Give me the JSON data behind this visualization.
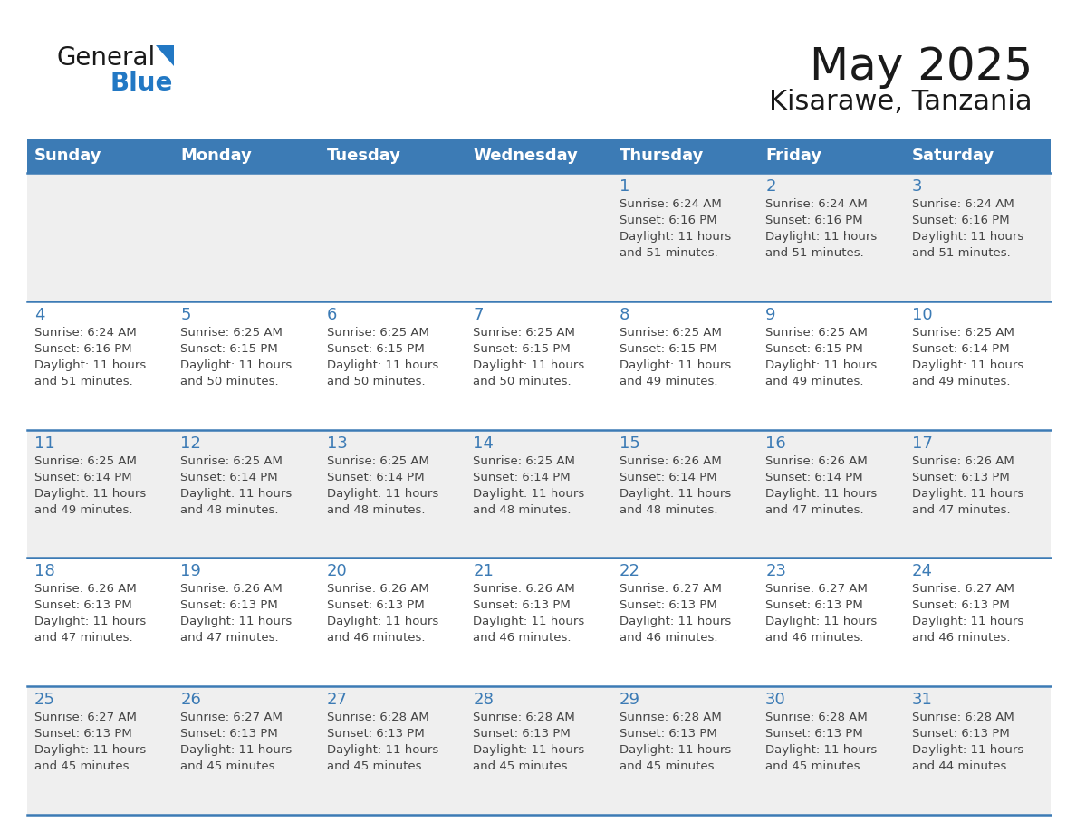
{
  "title": "May 2025",
  "subtitle": "Kisarawe, Tanzania",
  "days_of_week": [
    "Sunday",
    "Monday",
    "Tuesday",
    "Wednesday",
    "Thursday",
    "Friday",
    "Saturday"
  ],
  "header_bg": "#3C7BB5",
  "header_text": "#FFFFFF",
  "row_bg_even": "#EFEFEF",
  "row_bg_odd": "#FFFFFF",
  "day_number_color": "#3C7BB5",
  "cell_text_color": "#444444",
  "divider_color": "#3C7BB5",
  "logo_black": "#1a1a1a",
  "logo_blue": "#2278C4",
  "title_color": "#1a1a1a",
  "calendar_data": [
    [
      null,
      null,
      null,
      null,
      {
        "day": 1,
        "sunrise": "6:24 AM",
        "sunset": "6:16 PM",
        "daylight_h": "11 hours",
        "daylight_m": "and 51 minutes."
      },
      {
        "day": 2,
        "sunrise": "6:24 AM",
        "sunset": "6:16 PM",
        "daylight_h": "11 hours",
        "daylight_m": "and 51 minutes."
      },
      {
        "day": 3,
        "sunrise": "6:24 AM",
        "sunset": "6:16 PM",
        "daylight_h": "11 hours",
        "daylight_m": "and 51 minutes."
      }
    ],
    [
      {
        "day": 4,
        "sunrise": "6:24 AM",
        "sunset": "6:16 PM",
        "daylight_h": "11 hours",
        "daylight_m": "and 51 minutes."
      },
      {
        "day": 5,
        "sunrise": "6:25 AM",
        "sunset": "6:15 PM",
        "daylight_h": "11 hours",
        "daylight_m": "and 50 minutes."
      },
      {
        "day": 6,
        "sunrise": "6:25 AM",
        "sunset": "6:15 PM",
        "daylight_h": "11 hours",
        "daylight_m": "and 50 minutes."
      },
      {
        "day": 7,
        "sunrise": "6:25 AM",
        "sunset": "6:15 PM",
        "daylight_h": "11 hours",
        "daylight_m": "and 50 minutes."
      },
      {
        "day": 8,
        "sunrise": "6:25 AM",
        "sunset": "6:15 PM",
        "daylight_h": "11 hours",
        "daylight_m": "and 49 minutes."
      },
      {
        "day": 9,
        "sunrise": "6:25 AM",
        "sunset": "6:15 PM",
        "daylight_h": "11 hours",
        "daylight_m": "and 49 minutes."
      },
      {
        "day": 10,
        "sunrise": "6:25 AM",
        "sunset": "6:14 PM",
        "daylight_h": "11 hours",
        "daylight_m": "and 49 minutes."
      }
    ],
    [
      {
        "day": 11,
        "sunrise": "6:25 AM",
        "sunset": "6:14 PM",
        "daylight_h": "11 hours",
        "daylight_m": "and 49 minutes."
      },
      {
        "day": 12,
        "sunrise": "6:25 AM",
        "sunset": "6:14 PM",
        "daylight_h": "11 hours",
        "daylight_m": "and 48 minutes."
      },
      {
        "day": 13,
        "sunrise": "6:25 AM",
        "sunset": "6:14 PM",
        "daylight_h": "11 hours",
        "daylight_m": "and 48 minutes."
      },
      {
        "day": 14,
        "sunrise": "6:25 AM",
        "sunset": "6:14 PM",
        "daylight_h": "11 hours",
        "daylight_m": "and 48 minutes."
      },
      {
        "day": 15,
        "sunrise": "6:26 AM",
        "sunset": "6:14 PM",
        "daylight_h": "11 hours",
        "daylight_m": "and 48 minutes."
      },
      {
        "day": 16,
        "sunrise": "6:26 AM",
        "sunset": "6:14 PM",
        "daylight_h": "11 hours",
        "daylight_m": "and 47 minutes."
      },
      {
        "day": 17,
        "sunrise": "6:26 AM",
        "sunset": "6:13 PM",
        "daylight_h": "11 hours",
        "daylight_m": "and 47 minutes."
      }
    ],
    [
      {
        "day": 18,
        "sunrise": "6:26 AM",
        "sunset": "6:13 PM",
        "daylight_h": "11 hours",
        "daylight_m": "and 47 minutes."
      },
      {
        "day": 19,
        "sunrise": "6:26 AM",
        "sunset": "6:13 PM",
        "daylight_h": "11 hours",
        "daylight_m": "and 47 minutes."
      },
      {
        "day": 20,
        "sunrise": "6:26 AM",
        "sunset": "6:13 PM",
        "daylight_h": "11 hours",
        "daylight_m": "and 46 minutes."
      },
      {
        "day": 21,
        "sunrise": "6:26 AM",
        "sunset": "6:13 PM",
        "daylight_h": "11 hours",
        "daylight_m": "and 46 minutes."
      },
      {
        "day": 22,
        "sunrise": "6:27 AM",
        "sunset": "6:13 PM",
        "daylight_h": "11 hours",
        "daylight_m": "and 46 minutes."
      },
      {
        "day": 23,
        "sunrise": "6:27 AM",
        "sunset": "6:13 PM",
        "daylight_h": "11 hours",
        "daylight_m": "and 46 minutes."
      },
      {
        "day": 24,
        "sunrise": "6:27 AM",
        "sunset": "6:13 PM",
        "daylight_h": "11 hours",
        "daylight_m": "and 46 minutes."
      }
    ],
    [
      {
        "day": 25,
        "sunrise": "6:27 AM",
        "sunset": "6:13 PM",
        "daylight_h": "11 hours",
        "daylight_m": "and 45 minutes."
      },
      {
        "day": 26,
        "sunrise": "6:27 AM",
        "sunset": "6:13 PM",
        "daylight_h": "11 hours",
        "daylight_m": "and 45 minutes."
      },
      {
        "day": 27,
        "sunrise": "6:28 AM",
        "sunset": "6:13 PM",
        "daylight_h": "11 hours",
        "daylight_m": "and 45 minutes."
      },
      {
        "day": 28,
        "sunrise": "6:28 AM",
        "sunset": "6:13 PM",
        "daylight_h": "11 hours",
        "daylight_m": "and 45 minutes."
      },
      {
        "day": 29,
        "sunrise": "6:28 AM",
        "sunset": "6:13 PM",
        "daylight_h": "11 hours",
        "daylight_m": "and 45 minutes."
      },
      {
        "day": 30,
        "sunrise": "6:28 AM",
        "sunset": "6:13 PM",
        "daylight_h": "11 hours",
        "daylight_m": "and 45 minutes."
      },
      {
        "day": 31,
        "sunrise": "6:28 AM",
        "sunset": "6:13 PM",
        "daylight_h": "11 hours",
        "daylight_m": "and 44 minutes."
      }
    ]
  ]
}
